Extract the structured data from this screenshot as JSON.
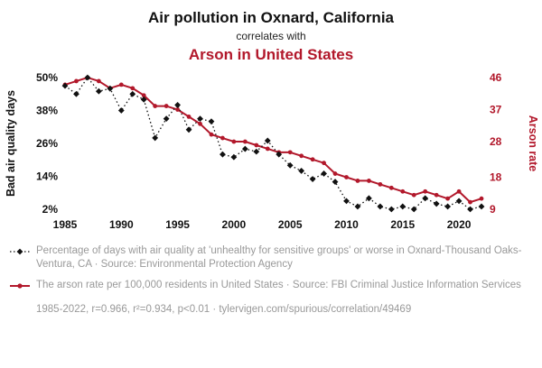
{
  "header": {
    "title": "Air pollution in Oxnard, California",
    "subtitle": "correlates with",
    "title2": "Arson in United States"
  },
  "colors": {
    "accent_red": "#b2182b",
    "series_black": "#111111",
    "footnote_gray": "#999999"
  },
  "chart_data": {
    "type": "line",
    "x": [
      1985,
      1986,
      1987,
      1988,
      1989,
      1990,
      1991,
      1992,
      1993,
      1994,
      1995,
      1996,
      1997,
      1998,
      1999,
      2000,
      2001,
      2002,
      2003,
      2004,
      2005,
      2006,
      2007,
      2008,
      2009,
      2010,
      2011,
      2012,
      2013,
      2014,
      2015,
      2016,
      2017,
      2018,
      2019,
      2020,
      2021,
      2022
    ],
    "x_ticks": [
      1985,
      1990,
      1995,
      2000,
      2005,
      2010,
      2015,
      2020
    ],
    "left_axis": {
      "label": "Bad air quality days",
      "range": [
        2,
        50
      ],
      "ticks": [
        {
          "v": 50,
          "t": "50%"
        },
        {
          "v": 38,
          "t": "38%"
        },
        {
          "v": 26,
          "t": "26%"
        },
        {
          "v": 14,
          "t": "14%"
        },
        {
          "v": 2,
          "t": "2%"
        }
      ]
    },
    "right_axis": {
      "label": "Arson rate",
      "range": [
        9,
        46
      ],
      "ticks": [
        {
          "v": 46,
          "t": "46"
        },
        {
          "v": 37,
          "t": "37"
        },
        {
          "v": 28,
          "t": "28"
        },
        {
          "v": 18,
          "t": "18"
        },
        {
          "v": 9,
          "t": "9"
        }
      ]
    },
    "series": [
      {
        "name": "air-quality",
        "axis": "left",
        "color": "#111111",
        "style": "dotted-diamond",
        "values": [
          47,
          44,
          50,
          45,
          46,
          38,
          44,
          42,
          28,
          35,
          40,
          31,
          35,
          34,
          22,
          21,
          24,
          23,
          27,
          22,
          18,
          16,
          13,
          15,
          12,
          5,
          3,
          6,
          3,
          2,
          3,
          2,
          6,
          4,
          3,
          5,
          2,
          3
        ]
      },
      {
        "name": "arson-rate",
        "axis": "right",
        "color": "#b2182b",
        "style": "solid-circle",
        "values": [
          44,
          45,
          46,
          45,
          43,
          44,
          43,
          41,
          38,
          38,
          37,
          35,
          33,
          30,
          29,
          28,
          28,
          27,
          26,
          25,
          25,
          24,
          23,
          22,
          19,
          18,
          17,
          17,
          16,
          15,
          14,
          13,
          14,
          13,
          12,
          14,
          11,
          12
        ]
      }
    ],
    "legend_position": "bottom",
    "grid": false
  },
  "legend": {
    "item1": "Percentage of days with air quality at 'unhealthy for sensitive groups' or worse in Oxnard-Thousand Oaks-Ventura, CA · Source: Environmental Protection Agency",
    "item2": "The arson rate per 100,000 residents in United States · Source: FBI Criminal Justice Information Services",
    "stats": "1985-2022, r=0.966, r²=0.934, p<0.01 · tylervigen.com/spurious/correlation/49469"
  }
}
